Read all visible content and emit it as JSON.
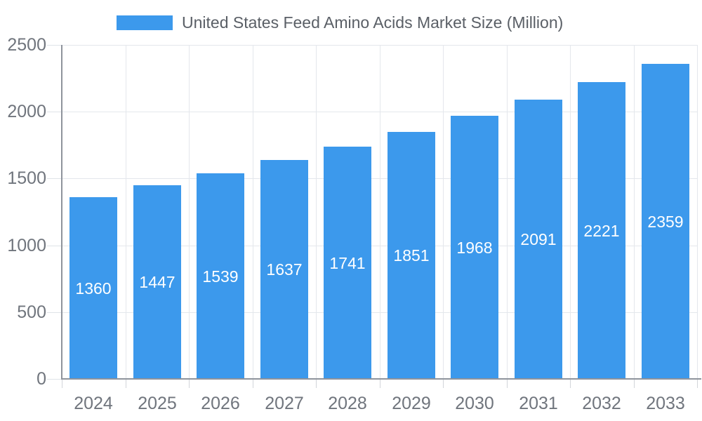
{
  "chart_data": {
    "type": "bar",
    "title": "United States Feed Amino Acids Market Size (Million)",
    "legend_entries": [
      "United States Feed Amino Acids Market Size (Million)"
    ],
    "legend_position": "top",
    "categories": [
      "2024",
      "2025",
      "2026",
      "2027",
      "2028",
      "2029",
      "2030",
      "2031",
      "2032",
      "2033"
    ],
    "values": [
      1360,
      1447,
      1539,
      1637,
      1741,
      1851,
      1968,
      2091,
      2221,
      2359
    ],
    "xlabel": "",
    "ylabel": "",
    "ylim": [
      0,
      2500
    ],
    "yticks": [
      0,
      500,
      1000,
      1500,
      2000,
      2500
    ],
    "grid": true,
    "bar_color": "#3c99ec",
    "bar_label_color": "#ffffff",
    "axis_color": "#8f949c",
    "grid_color": "#e4e7ec",
    "tick_label_color": "#70757d",
    "legend_text_color": "#5a5f66"
  }
}
